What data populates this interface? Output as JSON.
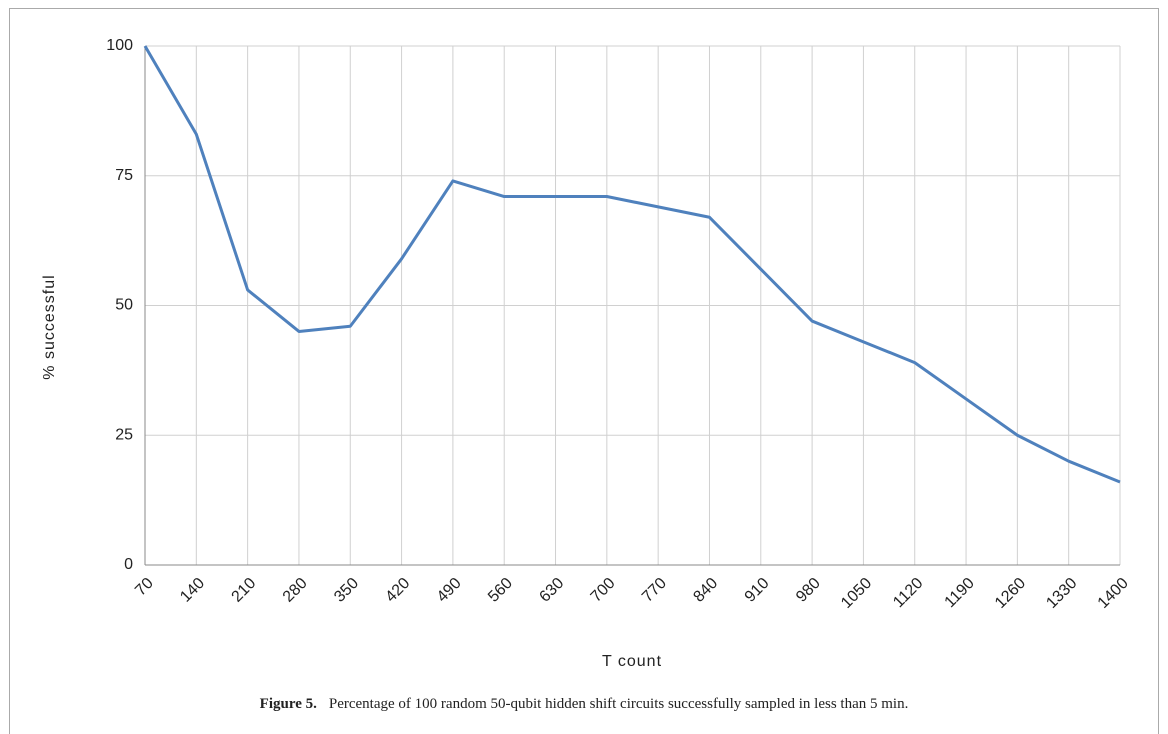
{
  "chart_data": {
    "type": "line",
    "x_label": "T count",
    "y_label": "% successful",
    "caption_label": "Figure 5.",
    "caption": "Percentage of 100 random 50-qubit hidden shift circuits successfully sampled in less than 5 min.",
    "x": [
      70,
      140,
      210,
      280,
      350,
      420,
      490,
      560,
      630,
      700,
      770,
      840,
      910,
      980,
      1050,
      1120,
      1190,
      1260,
      1330,
      1400
    ],
    "series": [
      {
        "name": "% successful",
        "color": "#4f81bd",
        "values": [
          100,
          83,
          53,
          45,
          46,
          59,
          74,
          71,
          71,
          71,
          69,
          67,
          57,
          47,
          43,
          39,
          32,
          25,
          20,
          16
        ]
      }
    ],
    "xlim": [
      70,
      1400
    ],
    "xticks": [
      70,
      140,
      210,
      280,
      350,
      420,
      490,
      560,
      630,
      700,
      770,
      840,
      910,
      980,
      1050,
      1120,
      1190,
      1260,
      1330,
      1400
    ],
    "ylim": [
      0,
      100
    ],
    "yticks": [
      0,
      25,
      50,
      75,
      100
    ],
    "grid": true
  }
}
